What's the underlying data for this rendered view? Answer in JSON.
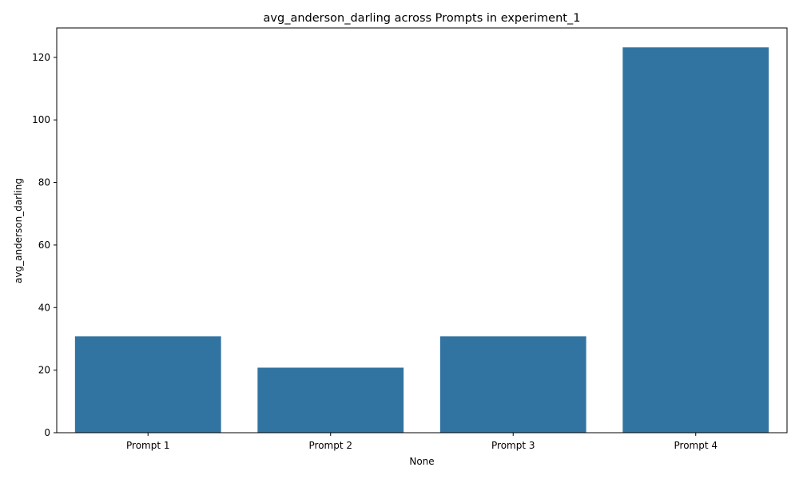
{
  "chart_data": {
    "type": "bar",
    "title": "avg_anderson_darling across Prompts in experiment_1",
    "xlabel": "None",
    "ylabel": "avg_anderson_darling",
    "categories": [
      "Prompt 1",
      "Prompt 2",
      "Prompt 3",
      "Prompt 4"
    ],
    "values": [
      30.8,
      20.8,
      30.8,
      123.2
    ],
    "ylim": [
      0,
      129.4
    ],
    "yticks": [
      0,
      20,
      40,
      60,
      80,
      100,
      120
    ],
    "grid": false,
    "legend": "none",
    "bar_color": "#3274a1"
  }
}
